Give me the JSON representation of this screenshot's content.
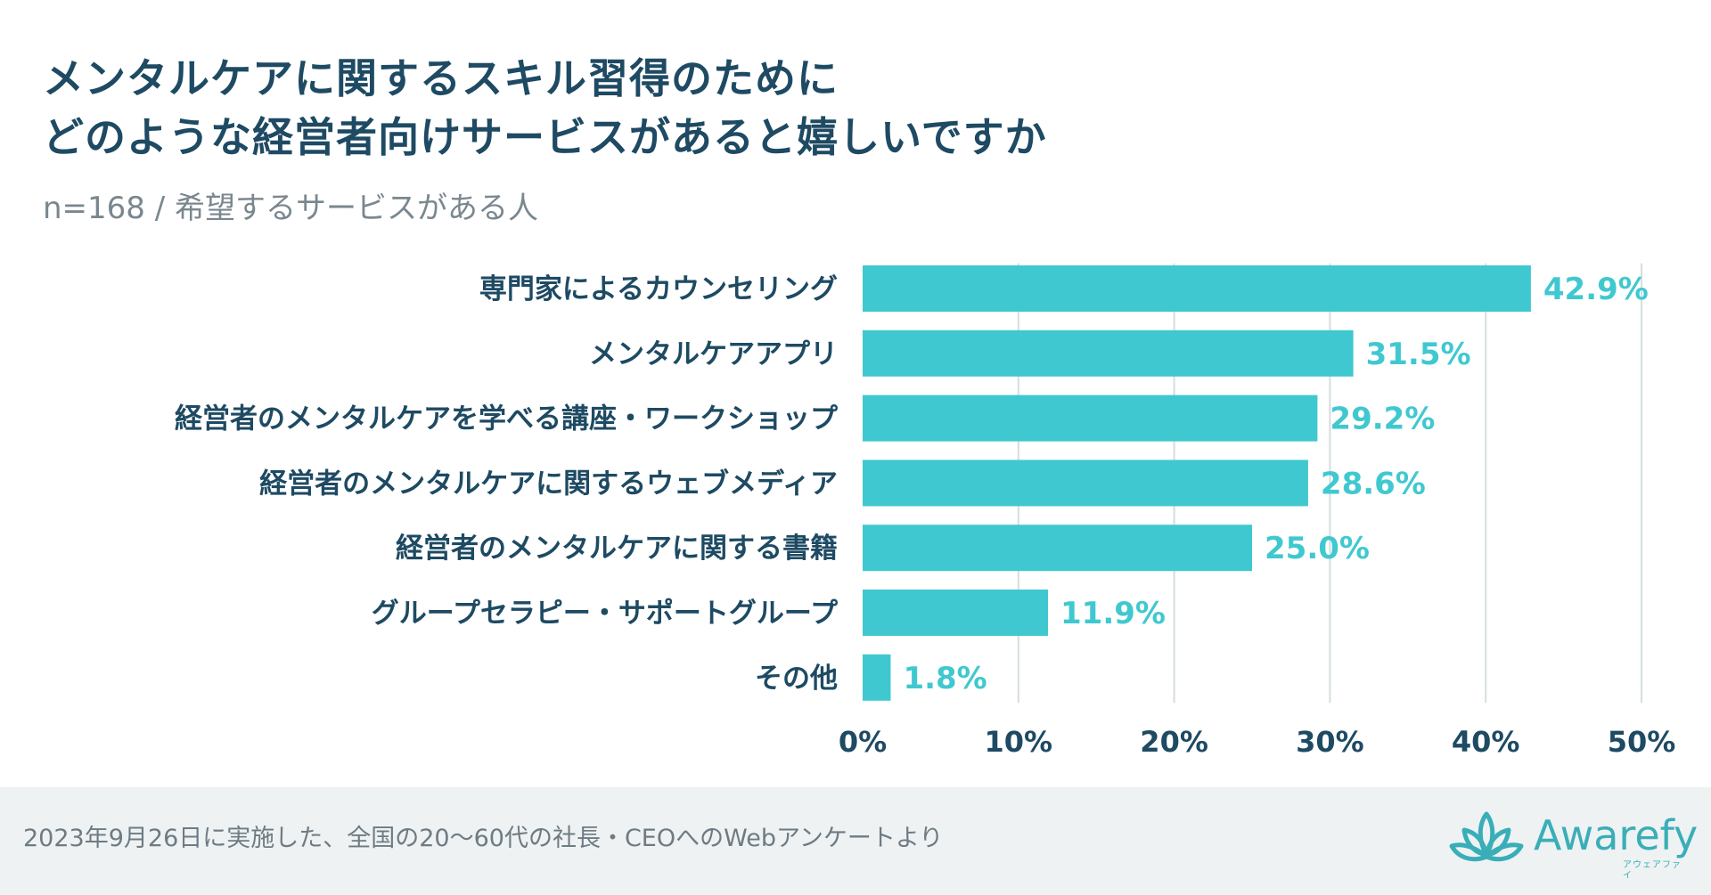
{
  "chart_data": {
    "type": "bar",
    "orientation": "horizontal",
    "title_lines": [
      "メンタルケアに関するスキル習得のために",
      "どのような経営者向けサービスがあると嬉しいですか"
    ],
    "subtitle": "n=168 / 希望するサービスがある人",
    "categories": [
      "専門家によるカウンセリング",
      "メンタルケアアプリ",
      "経営者のメンタルケアを学べる講座・ワークショップ",
      "経営者のメンタルケアに関するウェブメディア",
      "経営者のメンタルケアに関する書籍",
      "グループセラピー・サポートグループ",
      "その他"
    ],
    "values": [
      42.9,
      31.5,
      29.2,
      28.6,
      25.0,
      11.9,
      1.8
    ],
    "value_labels": [
      "42.9%",
      "31.5%",
      "29.2%",
      "28.6%",
      "25.0%",
      "11.9%",
      "1.8%"
    ],
    "x_ticks": [
      0,
      10,
      20,
      30,
      40,
      50
    ],
    "x_tick_labels": [
      "0%",
      "10%",
      "20%",
      "30%",
      "40%",
      "50%"
    ],
    "xlim": [
      0,
      50
    ],
    "grid": true,
    "bar_color": "#40c8d0"
  },
  "footer": {
    "note": "2023年9月26日に実施した、全国の20〜60代の社長・CEOへのWebアンケートより",
    "brand": "Awarefy",
    "brand_kana": "アウェアファイ"
  },
  "colors": {
    "title": "#1e4a63",
    "label": "#1e4a63",
    "value_label": "#40c8d0",
    "grid": "#d5dde0",
    "footer_bg": "#eef2f3",
    "brand": "#3aaeb8"
  }
}
